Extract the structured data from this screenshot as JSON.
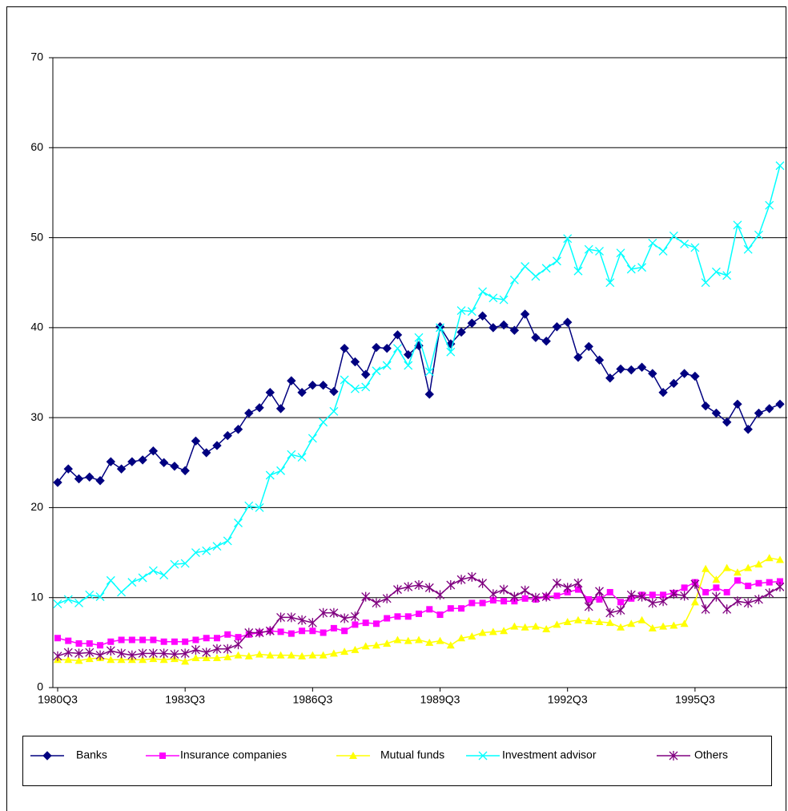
{
  "chart_data": {
    "type": "line",
    "categories": [
      "1980Q3",
      null,
      null,
      null,
      null,
      null,
      null,
      null,
      null,
      null,
      null,
      null,
      "1983Q3",
      null,
      null,
      null,
      null,
      null,
      null,
      null,
      null,
      null,
      null,
      null,
      "1986Q3",
      null,
      null,
      null,
      null,
      null,
      null,
      null,
      null,
      null,
      null,
      null,
      "1989Q3",
      null,
      null,
      null,
      null,
      null,
      null,
      null,
      null,
      null,
      null,
      null,
      "1992Q3",
      null,
      null,
      null,
      null,
      null,
      null,
      null,
      null,
      null,
      null,
      null,
      "1995Q3",
      null,
      null,
      null,
      null,
      null,
      null,
      null,
      null
    ],
    "ylim": [
      0,
      70
    ],
    "yticks": [
      0,
      10,
      20,
      30,
      40,
      50,
      60,
      70
    ],
    "grid": true,
    "legend": "bottom",
    "series": [
      {
        "name": "Banks",
        "color": "#000080",
        "marker": "diamond",
        "values": [
          22.8,
          24.3,
          23.2,
          23.4,
          23.0,
          25.1,
          24.3,
          25.1,
          25.3,
          26.3,
          25.0,
          24.6,
          24.1,
          27.4,
          26.1,
          26.9,
          28.0,
          28.7,
          30.5,
          31.1,
          32.8,
          31.0,
          34.1,
          32.8,
          33.6,
          33.6,
          32.9,
          37.7,
          36.2,
          34.8,
          37.8,
          37.7,
          39.2,
          37.0,
          38.0,
          32.6,
          40.1,
          38.2,
          39.5,
          40.5,
          41.3,
          40.0,
          40.3,
          39.7,
          41.5,
          38.9,
          38.5,
          40.1,
          40.6,
          36.7,
          37.9,
          36.4,
          34.4,
          35.4,
          35.3,
          35.6,
          34.9,
          32.8,
          33.8,
          34.9,
          34.6,
          31.3,
          30.5,
          29.5,
          31.5,
          28.7,
          30.5,
          31.0,
          31.5
        ]
      },
      {
        "name": "Insurance companies",
        "color": "#ff00ff",
        "marker": "square",
        "values": [
          5.5,
          5.2,
          4.9,
          4.9,
          4.7,
          5.1,
          5.3,
          5.3,
          5.3,
          5.3,
          5.1,
          5.1,
          5.1,
          5.3,
          5.5,
          5.5,
          5.9,
          5.6,
          5.9,
          6.1,
          6.3,
          6.2,
          6.0,
          6.3,
          6.3,
          6.1,
          6.6,
          6.3,
          7.0,
          7.2,
          7.1,
          7.7,
          7.9,
          7.9,
          8.2,
          8.7,
          8.1,
          8.8,
          8.8,
          9.4,
          9.4,
          9.7,
          9.6,
          9.6,
          9.9,
          9.8,
          10.1,
          10.2,
          10.6,
          10.9,
          9.8,
          9.8,
          10.6,
          9.5,
          9.9,
          10.3,
          10.3,
          10.3,
          10.5,
          11.1,
          11.7,
          10.6,
          11.1,
          10.6,
          11.9,
          11.3,
          11.6,
          11.7,
          11.8
        ]
      },
      {
        "name": "Mutual funds",
        "color": "#ffff00",
        "marker": "triangle",
        "values": [
          3.1,
          3.1,
          3.0,
          3.2,
          3.3,
          3.1,
          3.1,
          3.1,
          3.1,
          3.2,
          3.1,
          3.2,
          2.9,
          3.3,
          3.3,
          3.3,
          3.4,
          3.6,
          3.5,
          3.7,
          3.6,
          3.6,
          3.6,
          3.5,
          3.6,
          3.6,
          3.8,
          4.0,
          4.2,
          4.6,
          4.7,
          4.9,
          5.3,
          5.2,
          5.3,
          5.0,
          5.2,
          4.7,
          5.5,
          5.7,
          6.1,
          6.2,
          6.3,
          6.8,
          6.7,
          6.8,
          6.5,
          7.0,
          7.3,
          7.5,
          7.4,
          7.3,
          7.2,
          6.7,
          7.1,
          7.5,
          6.6,
          6.8,
          6.9,
          7.1,
          9.5,
          13.2,
          12.0,
          13.3,
          12.8,
          13.3,
          13.7,
          14.4,
          14.2
        ]
      },
      {
        "name": "Investment advisor",
        "color": "#00ffff",
        "marker": "x",
        "values": [
          9.3,
          9.8,
          9.4,
          10.3,
          10.1,
          11.9,
          10.6,
          11.7,
          12.2,
          13.0,
          12.5,
          13.7,
          13.8,
          15.0,
          15.2,
          15.7,
          16.3,
          18.3,
          20.2,
          20.0,
          23.6,
          24.1,
          25.9,
          25.6,
          27.7,
          29.5,
          30.7,
          34.2,
          33.2,
          33.4,
          35.2,
          35.8,
          37.7,
          35.8,
          38.9,
          35.1,
          40.0,
          37.3,
          41.9,
          41.8,
          44.0,
          43.3,
          43.1,
          45.3,
          46.8,
          45.7,
          46.6,
          47.4,
          49.9,
          46.3,
          48.7,
          48.5,
          45.0,
          48.3,
          46.5,
          46.7,
          49.4,
          48.5,
          50.2,
          49.3,
          48.9,
          45.0,
          46.2,
          45.8,
          51.4,
          48.7,
          50.3,
          53.6,
          58.0
        ]
      },
      {
        "name": "Others",
        "color": "#800080",
        "marker": "star",
        "values": [
          3.5,
          3.9,
          3.8,
          3.9,
          3.6,
          4.1,
          3.8,
          3.6,
          3.8,
          3.8,
          3.8,
          3.7,
          3.8,
          4.2,
          3.9,
          4.3,
          4.3,
          4.8,
          6.1,
          6.1,
          6.3,
          7.8,
          7.8,
          7.5,
          7.2,
          8.3,
          8.3,
          7.7,
          7.9,
          10.1,
          9.4,
          9.9,
          10.9,
          11.2,
          11.4,
          11.1,
          10.3,
          11.4,
          12.0,
          12.3,
          11.6,
          10.4,
          10.9,
          10.1,
          10.8,
          10.0,
          10.1,
          11.6,
          11.1,
          11.6,
          9.0,
          10.7,
          8.3,
          8.6,
          10.3,
          10.1,
          9.4,
          9.6,
          10.4,
          10.2,
          11.5,
          8.7,
          10.1,
          8.7,
          9.6,
          9.4,
          9.8,
          10.5,
          11.2
        ]
      }
    ]
  }
}
